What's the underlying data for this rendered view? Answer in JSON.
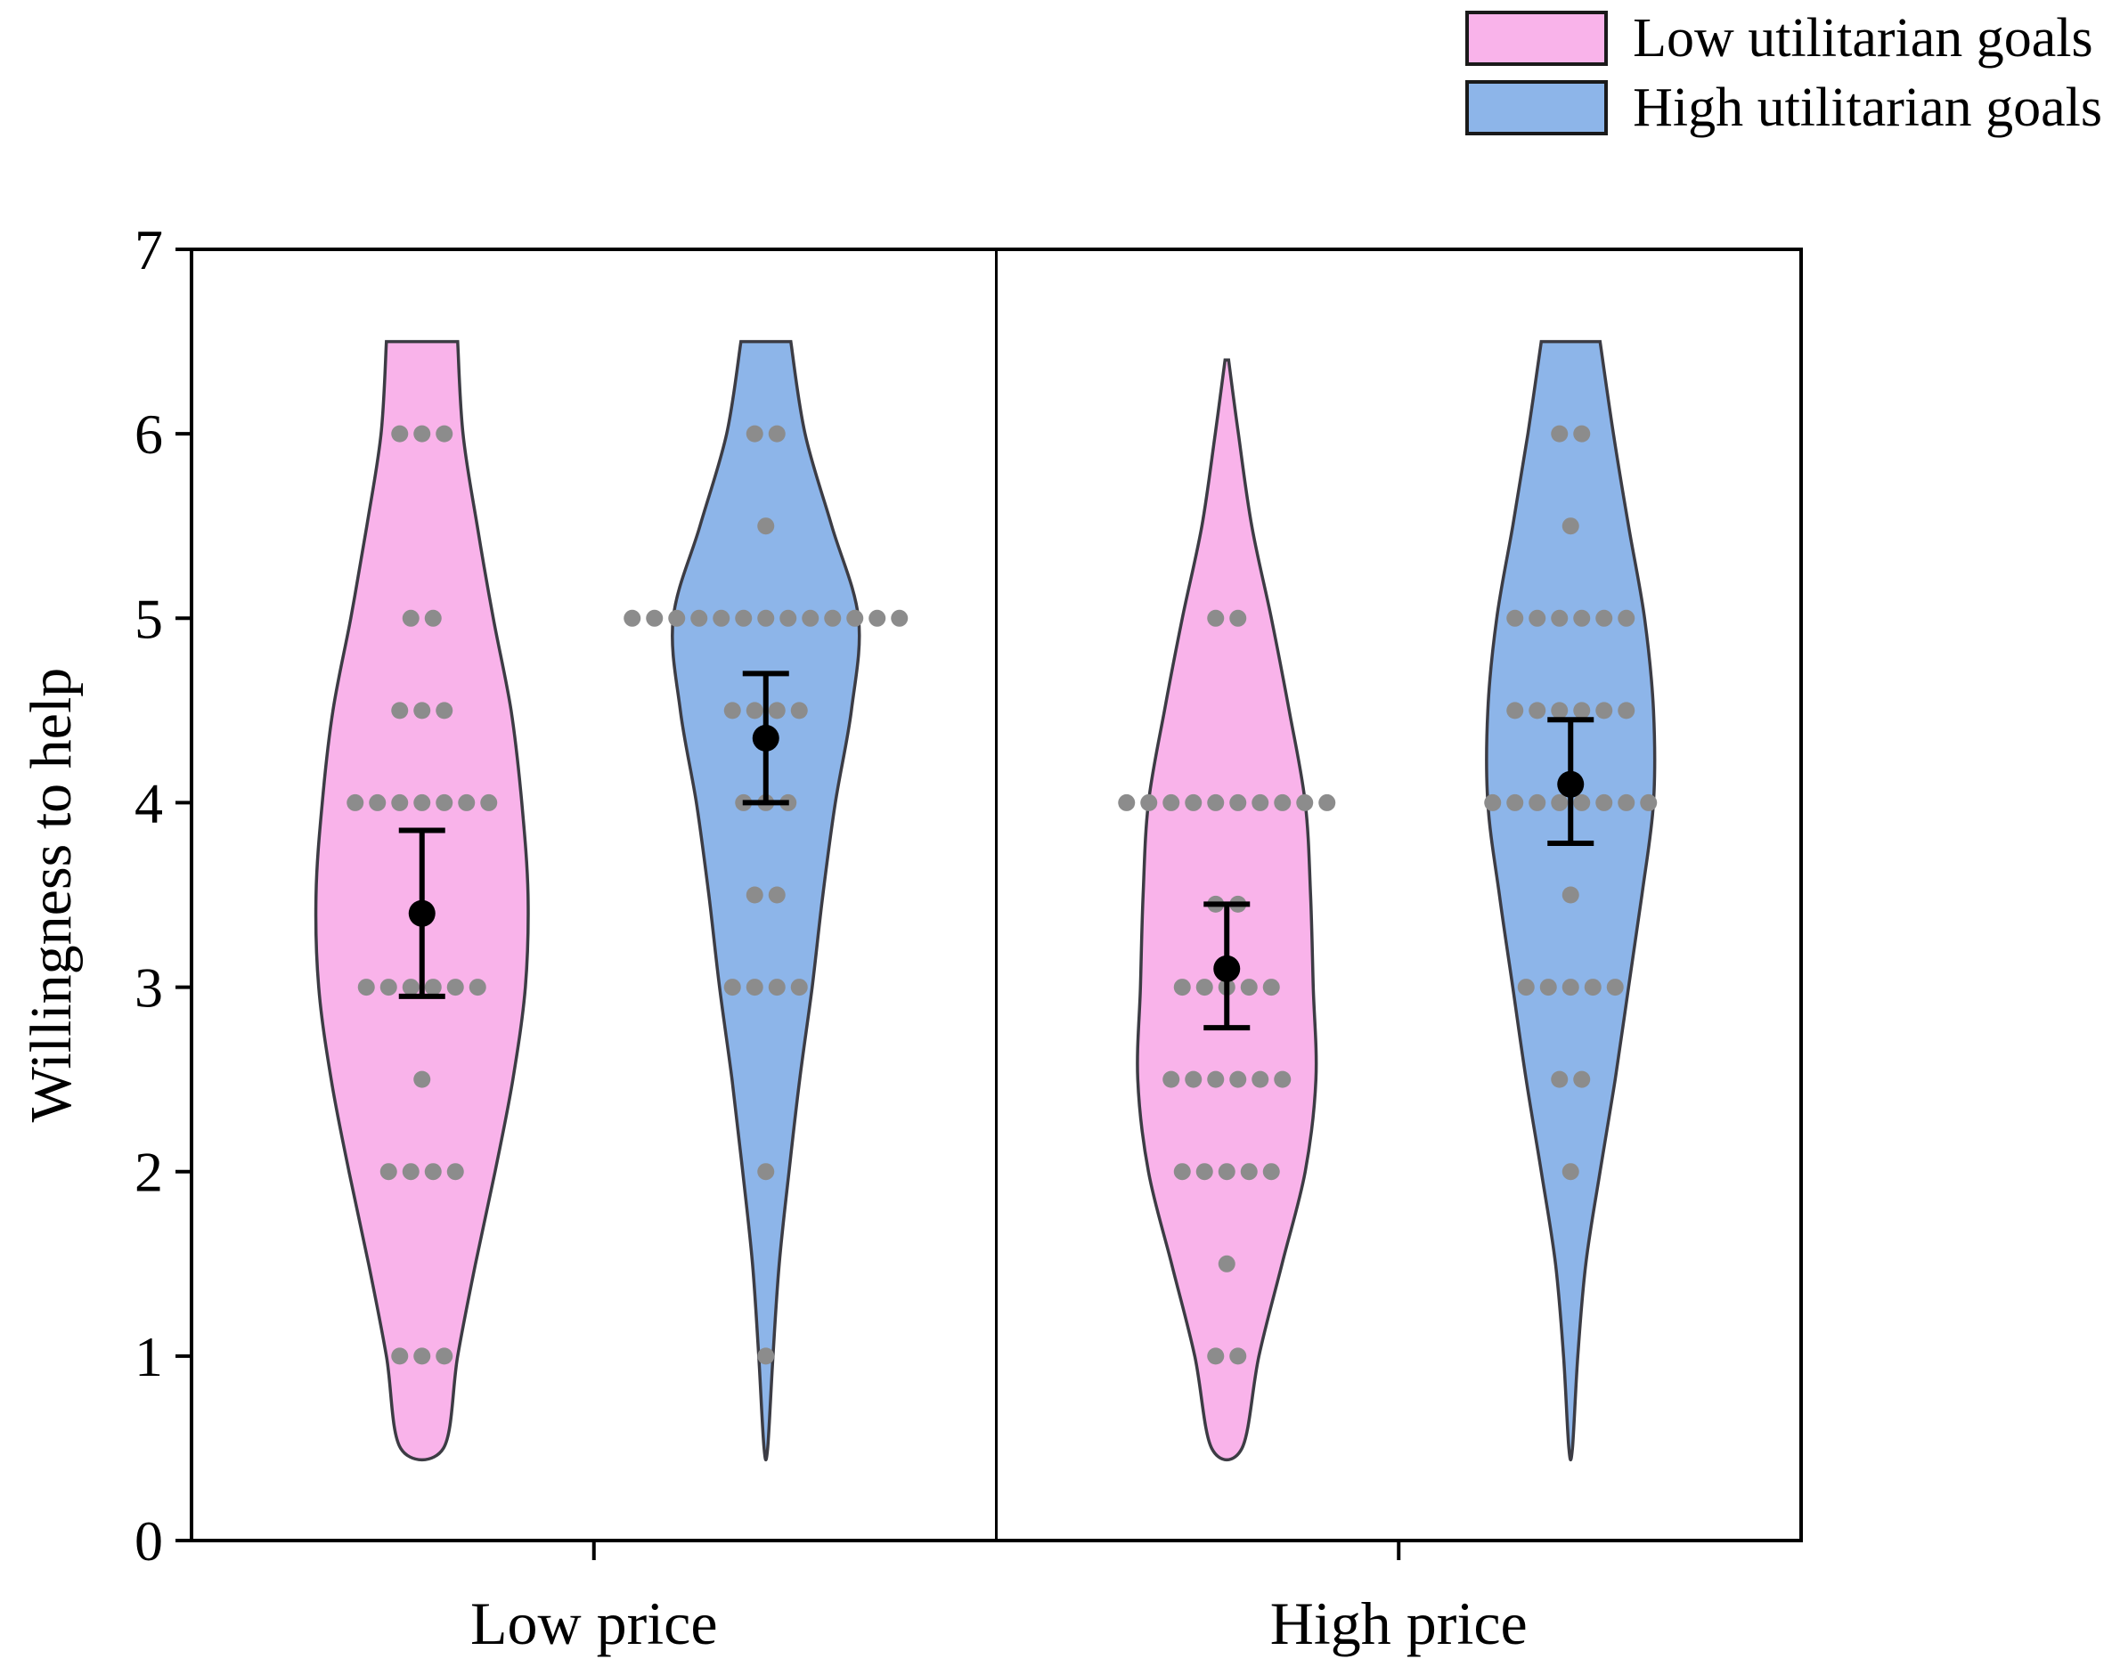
{
  "figure": {
    "background": "#ffffff"
  },
  "legend": {
    "items": [
      {
        "label": "Low utilitarian goals",
        "color": "#f9b3ea"
      },
      {
        "label": "High utilitarian goals",
        "color": "#8db5e9"
      }
    ]
  },
  "axes": {
    "y_label": "Willingness to help"
  },
  "chart_data": {
    "type": "violin",
    "title": "",
    "ylabel": "Willingness to help",
    "xlabel": "",
    "ylim": [
      0,
      7
    ],
    "yticks": [
      0,
      1,
      2,
      3,
      4,
      5,
      6,
      7
    ],
    "categories": [
      "Low price",
      "High price"
    ],
    "groups": [
      "Low utilitarian goals",
      "High utilitarian goals"
    ],
    "group_colors": [
      "#f9b3ea",
      "#8db5e9"
    ],
    "colors": {
      "outline": "#3c3c44",
      "dot": "#8c8c8c",
      "mean": "#000000",
      "axis": "#000000"
    },
    "violins": [
      {
        "category": "Low price",
        "group": "Low utilitarian goals",
        "mean": 3.4,
        "ci": [
          2.95,
          3.85
        ],
        "points": [
          {
            "value": 6,
            "count": 3
          },
          {
            "value": 5,
            "count": 2
          },
          {
            "value": 4.5,
            "count": 3
          },
          {
            "value": 4,
            "count": 7
          },
          {
            "value": 3,
            "count": 6
          },
          {
            "value": 2.5,
            "count": 1
          },
          {
            "value": 2,
            "count": 4
          },
          {
            "value": 1,
            "count": 3
          }
        ],
        "profile": [
          [
            6.5,
            40
          ],
          [
            6.0,
            46
          ],
          [
            5.5,
            62
          ],
          [
            5.0,
            80
          ],
          [
            4.5,
            100
          ],
          [
            4.0,
            112
          ],
          [
            3.5,
            119
          ],
          [
            3.0,
            116
          ],
          [
            2.5,
            102
          ],
          [
            2.0,
            82
          ],
          [
            1.5,
            60
          ],
          [
            1.0,
            40
          ],
          [
            0.5,
            24
          ]
        ]
      },
      {
        "category": "Low price",
        "group": "High utilitarian goals",
        "mean": 4.35,
        "ci": [
          4.0,
          4.7
        ],
        "points": [
          {
            "value": 6,
            "count": 2
          },
          {
            "value": 5.5,
            "count": 1
          },
          {
            "value": 5,
            "count": 13
          },
          {
            "value": 4.5,
            "count": 4
          },
          {
            "value": 4,
            "count": 3
          },
          {
            "value": 3.5,
            "count": 2
          },
          {
            "value": 3,
            "count": 4
          },
          {
            "value": 2,
            "count": 1
          },
          {
            "value": 1,
            "count": 1
          }
        ],
        "profile": [
          [
            6.5,
            28
          ],
          [
            6.0,
            44
          ],
          [
            5.5,
            74
          ],
          [
            5.0,
            104
          ],
          [
            4.5,
            96
          ],
          [
            4.0,
            78
          ],
          [
            3.5,
            64
          ],
          [
            3.0,
            52
          ],
          [
            2.5,
            38
          ],
          [
            2.0,
            26
          ],
          [
            1.5,
            15
          ],
          [
            1.0,
            8
          ],
          [
            0.5,
            2
          ]
        ]
      },
      {
        "category": "High price",
        "group": "Low utilitarian goals",
        "mean": 3.1,
        "ci": [
          2.78,
          3.45
        ],
        "points": [
          {
            "value": 5,
            "count": 2
          },
          {
            "value": 4,
            "count": 10
          },
          {
            "value": 3.45,
            "count": 2
          },
          {
            "value": 3,
            "count": 5
          },
          {
            "value": 2.5,
            "count": 6
          },
          {
            "value": 2,
            "count": 5
          },
          {
            "value": 1.5,
            "count": 1
          },
          {
            "value": 1,
            "count": 2
          }
        ],
        "profile": [
          [
            6.4,
            2
          ],
          [
            6.0,
            13
          ],
          [
            5.5,
            28
          ],
          [
            5.0,
            50
          ],
          [
            4.5,
            70
          ],
          [
            4.0,
            88
          ],
          [
            3.5,
            94
          ],
          [
            3.0,
            97
          ],
          [
            2.5,
            100
          ],
          [
            2.0,
            88
          ],
          [
            1.5,
            62
          ],
          [
            1.0,
            36
          ],
          [
            0.5,
            17
          ]
        ]
      },
      {
        "category": "High price",
        "group": "High utilitarian goals",
        "mean": 4.1,
        "ci": [
          3.78,
          4.45
        ],
        "points": [
          {
            "value": 6,
            "count": 2
          },
          {
            "value": 5.5,
            "count": 1
          },
          {
            "value": 5,
            "count": 6
          },
          {
            "value": 4.5,
            "count": 6
          },
          {
            "value": 4,
            "count": 8
          },
          {
            "value": 3.5,
            "count": 1
          },
          {
            "value": 3,
            "count": 5
          },
          {
            "value": 2.5,
            "count": 2
          },
          {
            "value": 2,
            "count": 1
          }
        ],
        "profile": [
          [
            6.5,
            33
          ],
          [
            6.0,
            48
          ],
          [
            5.5,
            65
          ],
          [
            5.0,
            83
          ],
          [
            4.5,
            93
          ],
          [
            4.0,
            93
          ],
          [
            3.5,
            80
          ],
          [
            3.0,
            65
          ],
          [
            2.5,
            50
          ],
          [
            2.0,
            33
          ],
          [
            1.5,
            17
          ],
          [
            1.0,
            8
          ],
          [
            0.5,
            2
          ]
        ]
      }
    ]
  }
}
